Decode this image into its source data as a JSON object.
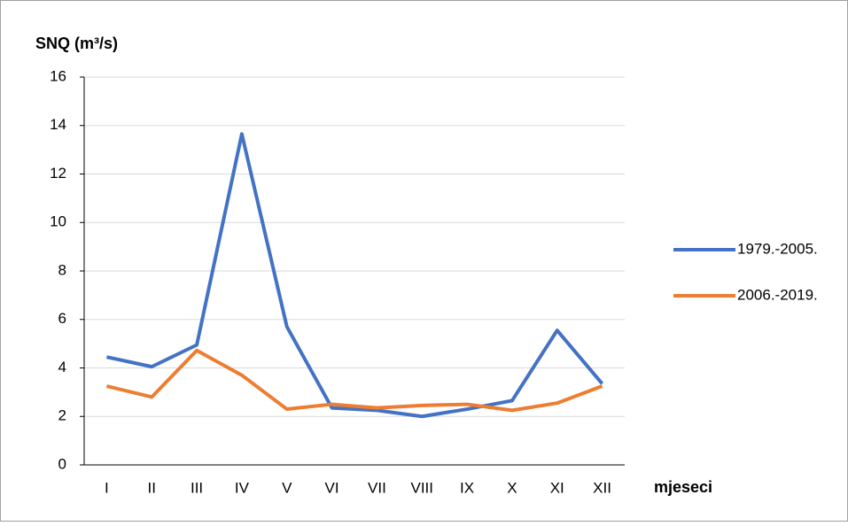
{
  "chart_data": {
    "type": "line",
    "y_label": "SNQ (m³/s)",
    "x_label": "mjeseci",
    "categories": [
      "I",
      "II",
      "III",
      "IV",
      "V",
      "VI",
      "VII",
      "VIII",
      "IX",
      "X",
      "XI",
      "XII"
    ],
    "series": [
      {
        "name": "1979.-2005.",
        "color": "#4472c4",
        "values": [
          4.45,
          4.05,
          4.95,
          13.65,
          5.7,
          2.35,
          2.25,
          2.0,
          2.3,
          2.65,
          5.55,
          3.35
        ]
      },
      {
        "name": "2006.-2019.",
        "color": "#ed7d31",
        "values": [
          3.25,
          2.8,
          4.72,
          3.7,
          2.3,
          2.5,
          2.35,
          2.45,
          2.5,
          2.25,
          2.55,
          3.25
        ]
      }
    ],
    "ylim": [
      0,
      16
    ],
    "yticks": [
      0,
      2,
      4,
      6,
      8,
      10,
      12,
      14,
      16
    ],
    "grid": true,
    "legend": "right"
  }
}
